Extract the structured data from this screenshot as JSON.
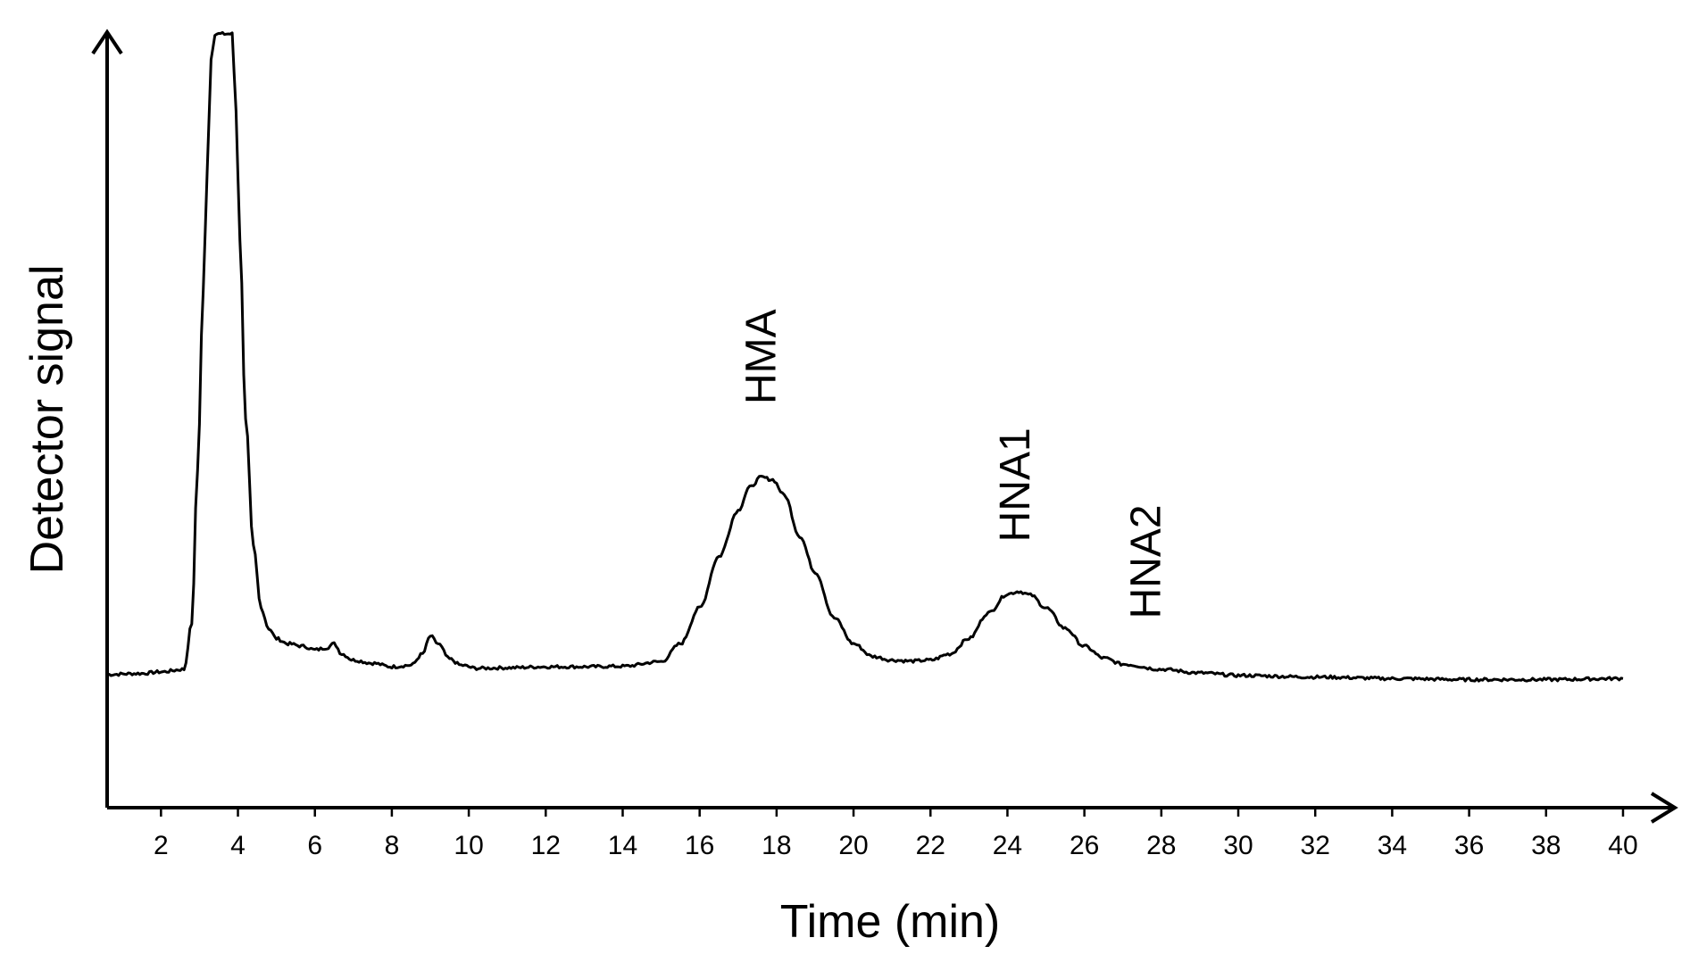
{
  "chart_data": {
    "type": "line",
    "title": "",
    "xlabel": "Time (min)",
    "ylabel": "Detector signal",
    "xlim": [
      0.6,
      41.3
    ],
    "ylim": [
      -0.06,
      1.45
    ],
    "x_ticks": [
      2,
      4,
      6,
      8,
      10,
      12,
      14,
      16,
      18,
      20,
      22,
      24,
      26,
      28,
      30,
      32,
      34,
      36,
      38,
      40
    ],
    "grid": false,
    "legend": "none",
    "y_tick_labels": false,
    "series": [
      {
        "values_description_units": "relative detector signal",
        "x": [
          0.6,
          1.5,
          2.0,
          2.6,
          2.8,
          2.95,
          3.1,
          3.2,
          3.3,
          3.4,
          3.55,
          3.7,
          3.85,
          3.95,
          4.05,
          4.2,
          4.4,
          4.6,
          4.8,
          5.0,
          5.3,
          5.7,
          6.0,
          6.3,
          6.5,
          6.7,
          7.0,
          7.5,
          8.0,
          8.5,
          8.8,
          9.0,
          9.2,
          9.5,
          9.8,
          10.2,
          11.0,
          12.0,
          13.0,
          14.0,
          15.0,
          15.5,
          16.0,
          16.5,
          17.0,
          17.3,
          17.6,
          17.9,
          18.2,
          18.6,
          19.0,
          19.5,
          20.0,
          20.5,
          21.0,
          21.5,
          22.0,
          22.5,
          23.0,
          23.5,
          24.0,
          24.3,
          24.6,
          25.0,
          25.5,
          26.0,
          26.5,
          27.0,
          28.0,
          29.0,
          30.0,
          32.0,
          34.0,
          36.0,
          38.0,
          40.0
        ],
        "values": [
          0.2,
          0.202,
          0.205,
          0.21,
          0.3,
          0.6,
          0.95,
          1.18,
          1.4,
          1.45,
          1.45,
          1.45,
          1.45,
          1.3,
          1.05,
          0.7,
          0.45,
          0.33,
          0.29,
          0.27,
          0.26,
          0.255,
          0.248,
          0.252,
          0.26,
          0.24,
          0.228,
          0.222,
          0.215,
          0.218,
          0.24,
          0.275,
          0.26,
          0.23,
          0.218,
          0.212,
          0.213,
          0.215,
          0.215,
          0.216,
          0.225,
          0.26,
          0.33,
          0.43,
          0.52,
          0.565,
          0.585,
          0.58,
          0.55,
          0.47,
          0.4,
          0.31,
          0.26,
          0.235,
          0.228,
          0.226,
          0.228,
          0.24,
          0.27,
          0.32,
          0.357,
          0.362,
          0.355,
          0.33,
          0.29,
          0.255,
          0.232,
          0.22,
          0.21,
          0.203,
          0.198,
          0.195,
          0.192,
          0.19,
          0.19,
          0.192
        ]
      }
    ],
    "annotations": [
      {
        "text": "HMA",
        "x": 17.6,
        "y": 0.82,
        "rotation": -90
      },
      {
        "text": "HNA1",
        "x": 24.2,
        "y": 0.57,
        "rotation": -90
      },
      {
        "text": "HNA2",
        "x": 27.6,
        "y": 0.42,
        "rotation": -90
      }
    ]
  }
}
